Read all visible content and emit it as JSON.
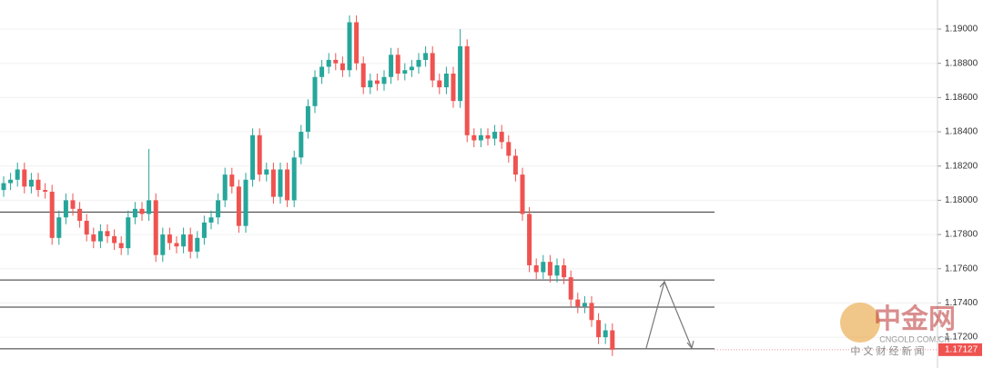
{
  "chart_data": {
    "type": "candlestick",
    "up_color": "#26a69a",
    "down_color": "#ef5350",
    "open": [
      1.1806,
      1.181,
      1.1812,
      1.1818,
      1.1808,
      1.1812,
      1.1806,
      1.1805,
      1.1778,
      1.179,
      1.18,
      1.1795,
      1.1788,
      1.178,
      1.1776,
      1.1782,
      1.1779,
      1.1775,
      1.1772,
      1.179,
      1.1795,
      1.1792,
      1.18,
      1.1768,
      1.178,
      1.1775,
      1.1773,
      1.178,
      1.177,
      1.1778,
      1.1787,
      1.179,
      1.18,
      1.1815,
      1.1808,
      1.1785,
      1.1812,
      1.1838,
      1.1815,
      1.1818,
      1.1802,
      1.1818,
      1.18,
      1.1825,
      1.184,
      1.1855,
      1.1872,
      1.1878,
      1.1882,
      1.188,
      1.1876,
      1.1904,
      1.188,
      1.1866,
      1.187,
      1.1868,
      1.1872,
      1.1885,
      1.1874,
      1.1876,
      1.1878,
      1.1882,
      1.1886,
      1.187,
      1.1866,
      1.1874,
      1.1858,
      1.189,
      1.1838,
      1.1835,
      1.1838,
      1.1836,
      1.184,
      1.1834,
      1.1826,
      1.1815,
      1.1792,
      1.1762,
      1.1758,
      1.1764,
      1.1756,
      1.1762,
      1.1755,
      1.1742,
      1.1738,
      1.174,
      1.173,
      1.172,
      1.1724
    ],
    "high": [
      1.1814,
      1.1816,
      1.1822,
      1.1822,
      1.1816,
      1.1816,
      1.181,
      1.1809,
      1.1794,
      1.1804,
      1.1804,
      1.1799,
      1.1792,
      1.1784,
      1.1786,
      1.1786,
      1.1783,
      1.1779,
      1.1794,
      1.1799,
      1.1799,
      1.183,
      1.1804,
      1.1784,
      1.1784,
      1.1779,
      1.1784,
      1.1784,
      1.1782,
      1.1791,
      1.1794,
      1.1804,
      1.1819,
      1.1819,
      1.1812,
      1.1816,
      1.1842,
      1.1842,
      1.1822,
      1.1822,
      1.1822,
      1.1822,
      1.1829,
      1.1844,
      1.1859,
      1.1876,
      1.1882,
      1.1886,
      1.1886,
      1.1884,
      1.1908,
      1.1908,
      1.1884,
      1.1874,
      1.1874,
      1.1876,
      1.1889,
      1.1889,
      1.188,
      1.1882,
      1.1886,
      1.189,
      1.189,
      1.1874,
      1.1878,
      1.1878,
      1.19,
      1.1894,
      1.1842,
      1.1842,
      1.1842,
      1.1844,
      1.1844,
      1.1838,
      1.183,
      1.1819,
      1.1796,
      1.1766,
      1.1768,
      1.1768,
      1.1766,
      1.1766,
      1.1759,
      1.1746,
      1.1744,
      1.1744,
      1.1734,
      1.1728,
      1.1728
    ],
    "low": [
      1.1802,
      1.1806,
      1.1808,
      1.1804,
      1.1804,
      1.1802,
      1.1801,
      1.1774,
      1.1774,
      1.1786,
      1.1791,
      1.1784,
      1.1776,
      1.1772,
      1.1772,
      1.1775,
      1.1771,
      1.1768,
      1.1768,
      1.1786,
      1.1788,
      1.1788,
      1.1764,
      1.1764,
      1.1771,
      1.1769,
      1.1769,
      1.1766,
      1.1766,
      1.1774,
      1.1783,
      1.1786,
      1.1796,
      1.1804,
      1.1781,
      1.1781,
      1.1808,
      1.1811,
      1.1811,
      1.1798,
      1.1798,
      1.1796,
      1.1796,
      1.1821,
      1.1836,
      1.1851,
      1.1868,
      1.1874,
      1.1876,
      1.1872,
      1.1872,
      1.1876,
      1.1862,
      1.1862,
      1.1864,
      1.1864,
      1.1868,
      1.187,
      1.187,
      1.1872,
      1.1874,
      1.1878,
      1.1866,
      1.1862,
      1.1862,
      1.1854,
      1.1854,
      1.1834,
      1.1831,
      1.1831,
      1.1832,
      1.1832,
      1.183,
      1.1822,
      1.1811,
      1.1788,
      1.1758,
      1.1754,
      1.1754,
      1.1752,
      1.1752,
      1.1751,
      1.1738,
      1.1734,
      1.1734,
      1.1726,
      1.1716,
      1.1716,
      1.1709
    ],
    "close": [
      1.181,
      1.1812,
      1.1818,
      1.1808,
      1.1812,
      1.1806,
      1.1805,
      1.1778,
      1.179,
      1.18,
      1.1795,
      1.1788,
      1.178,
      1.1776,
      1.1782,
      1.1779,
      1.1775,
      1.1772,
      1.179,
      1.1795,
      1.1792,
      1.18,
      1.1768,
      1.178,
      1.1775,
      1.1773,
      1.178,
      1.177,
      1.1778,
      1.1787,
      1.179,
      1.18,
      1.1815,
      1.1808,
      1.1785,
      1.1812,
      1.1838,
      1.1815,
      1.1818,
      1.1802,
      1.1818,
      1.18,
      1.1825,
      1.184,
      1.1855,
      1.1872,
      1.1878,
      1.1882,
      1.188,
      1.1876,
      1.1904,
      1.188,
      1.1866,
      1.187,
      1.1868,
      1.1872,
      1.1885,
      1.1874,
      1.1876,
      1.1878,
      1.1882,
      1.1886,
      1.187,
      1.1866,
      1.1874,
      1.1858,
      1.189,
      1.1838,
      1.1835,
      1.1838,
      1.1836,
      1.184,
      1.1834,
      1.1826,
      1.1815,
      1.1792,
      1.1762,
      1.1758,
      1.1764,
      1.1756,
      1.1762,
      1.1755,
      1.1742,
      1.1738,
      1.174,
      1.173,
      1.172,
      1.1724,
      1.17127
    ],
    "ylim": [
      1.1702,
      1.1917
    ],
    "yticks": [
      {
        "value": 1.19,
        "label": "1.19000"
      },
      {
        "value": 1.188,
        "label": "1.18800"
      },
      {
        "value": 1.186,
        "label": "1.18600"
      },
      {
        "value": 1.184,
        "label": "1.18400"
      },
      {
        "value": 1.182,
        "label": "1.18200"
      },
      {
        "value": 1.18,
        "label": "1.18000"
      },
      {
        "value": 1.178,
        "label": "1.17800"
      },
      {
        "value": 1.176,
        "label": "1.17600"
      },
      {
        "value": 1.174,
        "label": "1.17400"
      },
      {
        "value": 1.172,
        "label": "1.17200"
      }
    ],
    "grid": true,
    "levels": [
      1.17931,
      1.17534,
      1.17376,
      1.17132
    ],
    "last_price": {
      "value": 1.17127,
      "label": "1.17127"
    },
    "watermark": {
      "brand": "中金网",
      "site": "CNGOLD.COM.CN",
      "slogan": "中 文 财 经 新 闻"
    }
  }
}
